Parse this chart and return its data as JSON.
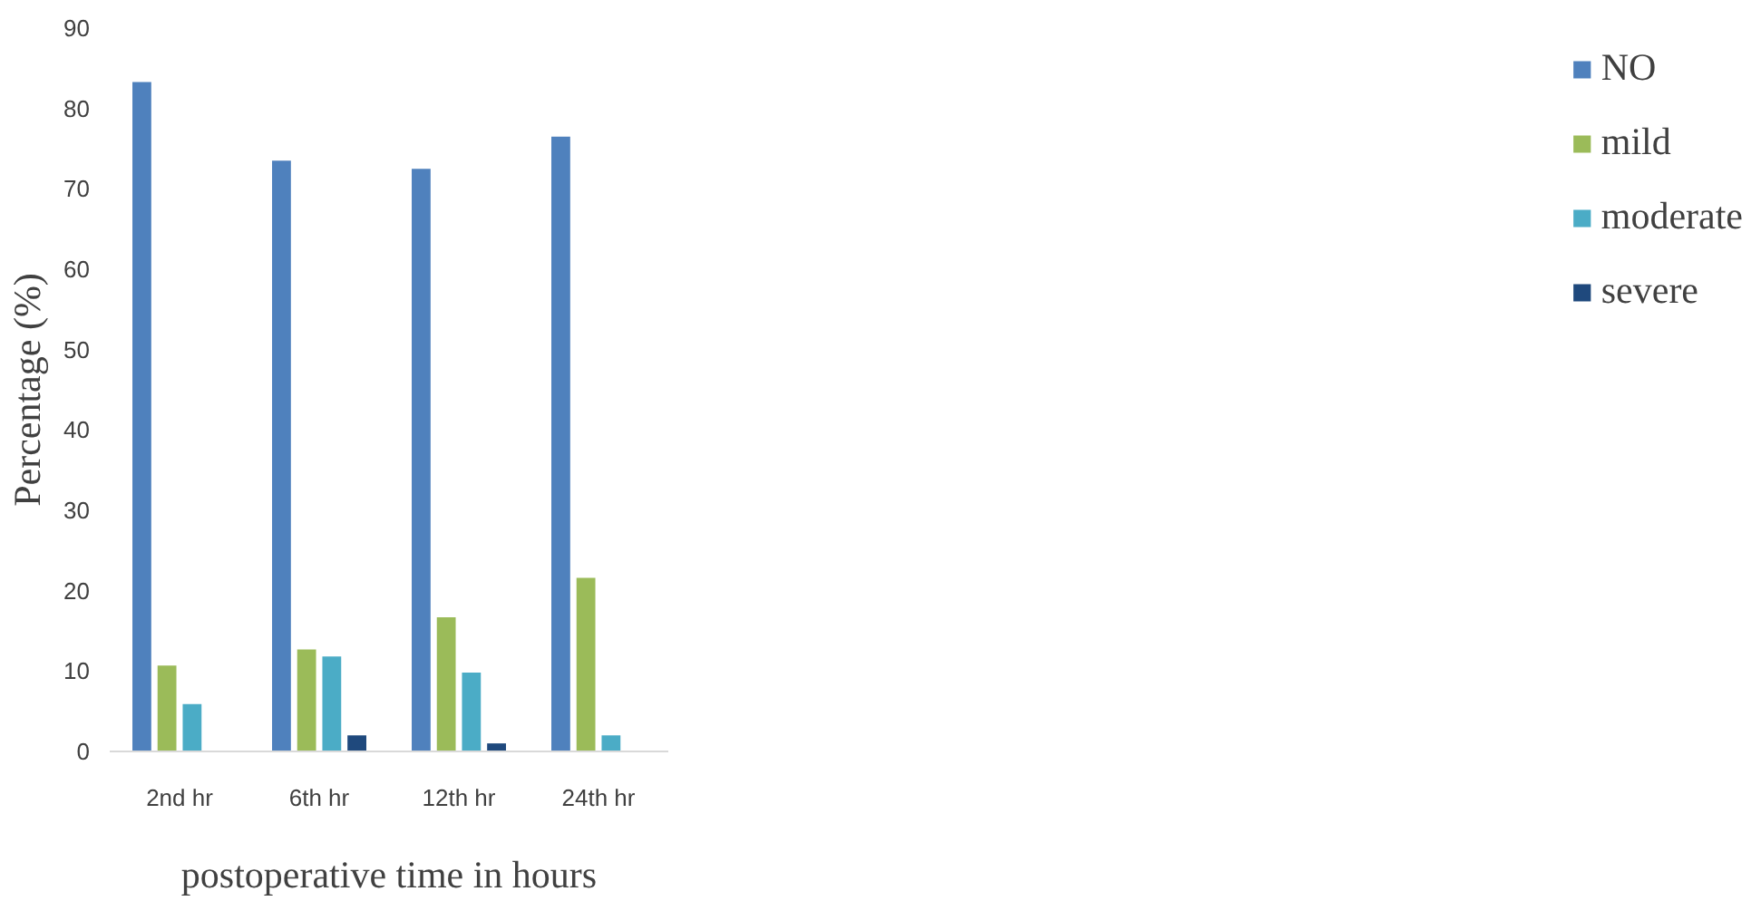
{
  "chart_data": {
    "type": "bar",
    "xlabel": "postoperative time in hours",
    "ylabel": "Percentage (%)",
    "categories": [
      "2nd hr",
      "6th hr",
      "12th hr",
      "24th hr"
    ],
    "series": [
      {
        "name": "NO",
        "color": "#4f81bd",
        "values": [
          83.3,
          73.5,
          72.5,
          76.5
        ]
      },
      {
        "name": "mild",
        "color": "#9bbb59",
        "values": [
          10.7,
          12.7,
          16.7,
          21.6
        ]
      },
      {
        "name": "moderate",
        "color": "#4bacc6",
        "values": [
          5.9,
          11.8,
          9.8,
          2.0
        ]
      },
      {
        "name": "severe",
        "color": "#1f497d",
        "values": [
          0,
          2.0,
          1.0,
          0
        ]
      }
    ],
    "ylim": [
      0,
      90
    ],
    "yticks": [
      0,
      10,
      20,
      30,
      40,
      50,
      60,
      70,
      80,
      90
    ],
    "grid": false,
    "legend": "right"
  }
}
